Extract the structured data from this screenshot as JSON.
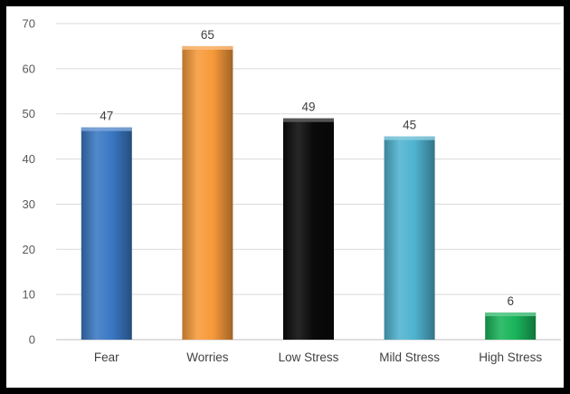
{
  "chart_data": {
    "type": "bar",
    "title": "",
    "xlabel": "",
    "ylabel": "",
    "categories": [
      "Fear",
      "Worries",
      "Low Stress",
      "Mild Stress",
      "High Stress"
    ],
    "values": [
      47,
      65,
      49,
      45,
      6
    ],
    "data_labels": [
      "47",
      "65",
      "49",
      "45",
      "6"
    ],
    "colors": [
      "#3a78c4",
      "#f79a3a",
      "#0a0a0a",
      "#4fb3cf",
      "#19b45a"
    ],
    "ylim": [
      0,
      70
    ],
    "yticks": [
      "0",
      "10",
      "20",
      "30",
      "40",
      "50",
      "60",
      "70"
    ],
    "grid": "horizontal",
    "legend": "none"
  }
}
